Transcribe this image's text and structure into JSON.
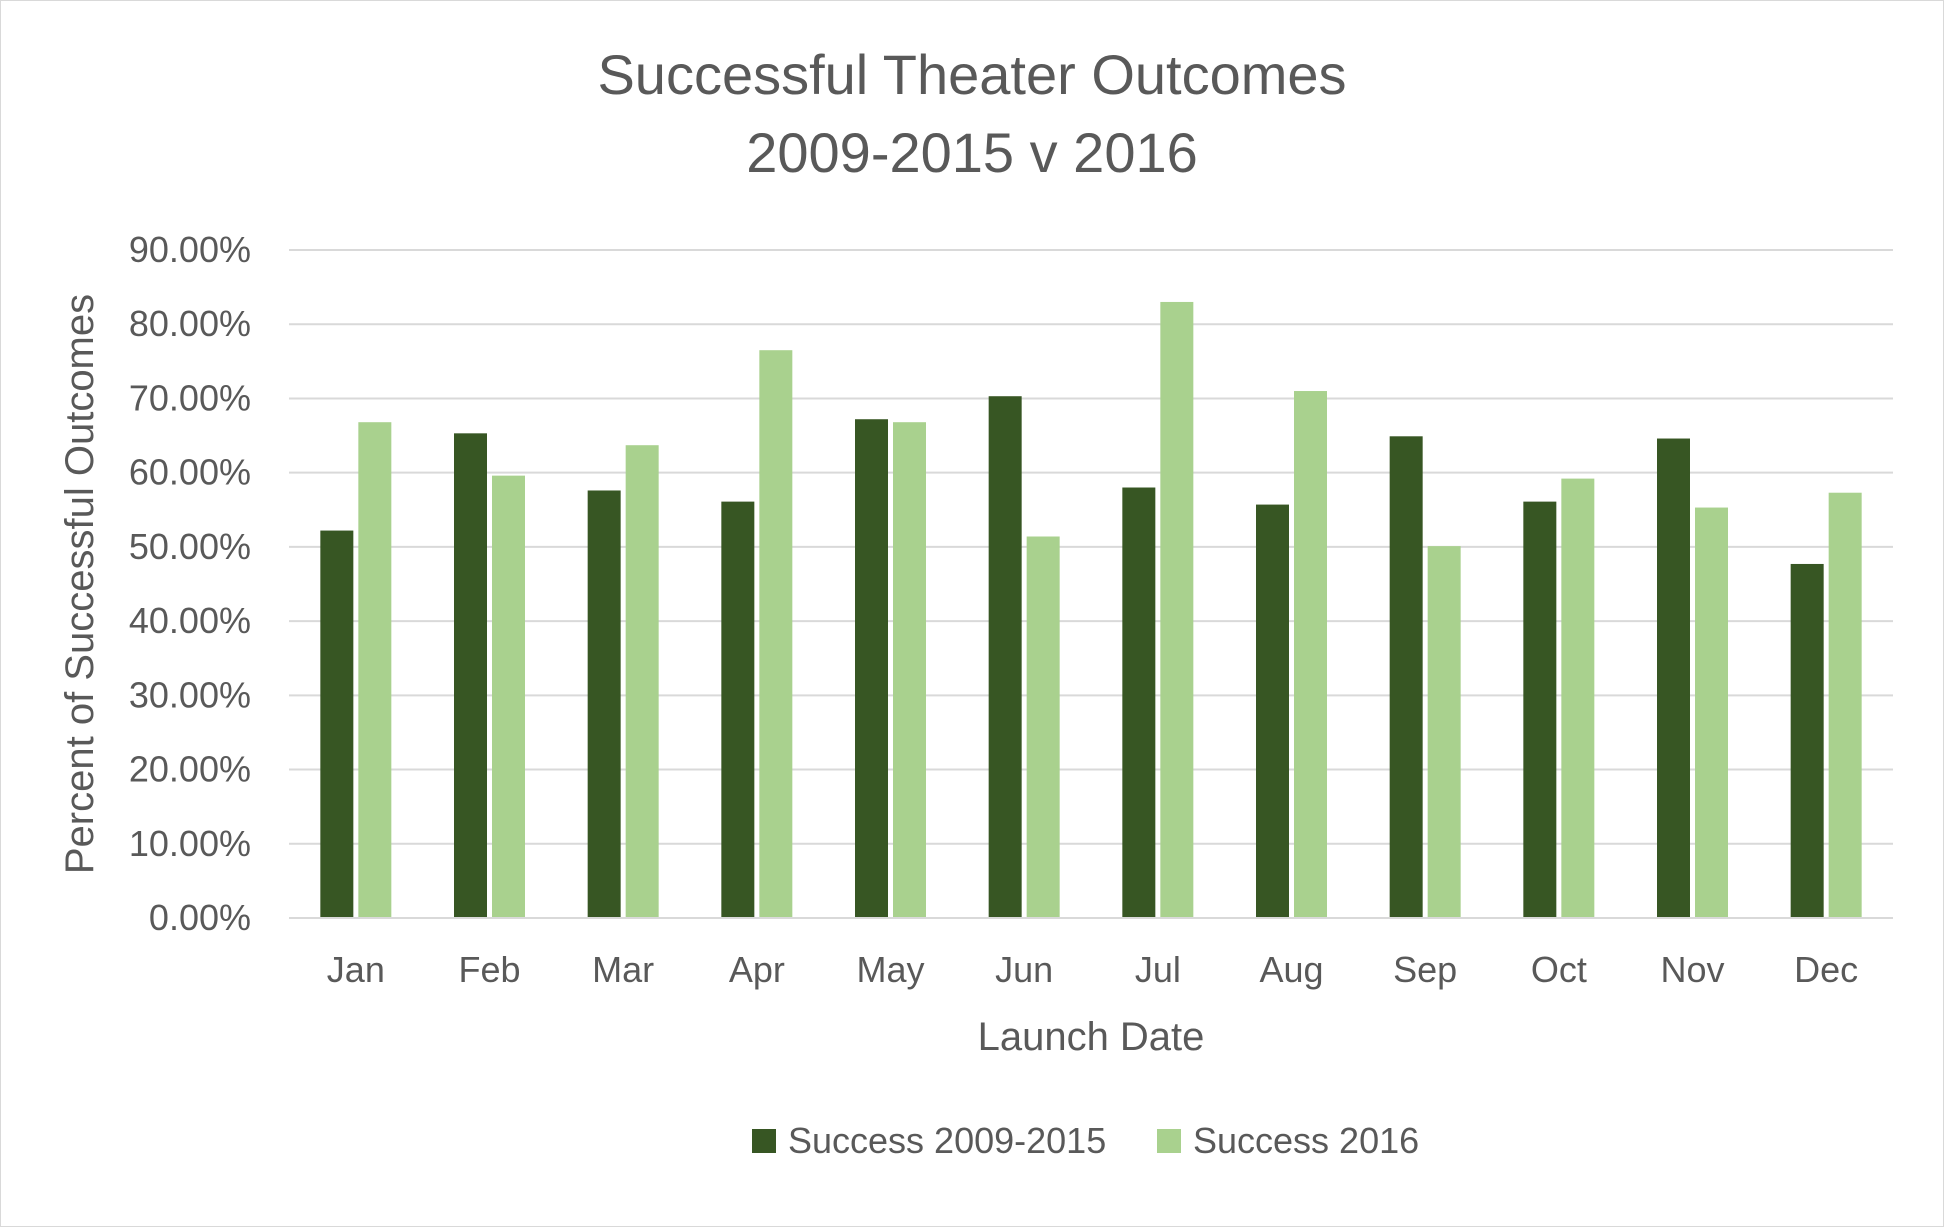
{
  "chart_data": {
    "type": "bar",
    "title_lines": [
      "Successful Theater Outcomes",
      "2009-2015 v 2016"
    ],
    "xlabel": "Launch Date",
    "ylabel": "Percent of Successful Outcomes",
    "categories": [
      "Jan",
      "Feb",
      "Mar",
      "Apr",
      "May",
      "Jun",
      "Jul",
      "Aug",
      "Sep",
      "Oct",
      "Nov",
      "Dec"
    ],
    "ylim": [
      0,
      90
    ],
    "yticks": [
      0,
      10,
      20,
      30,
      40,
      50,
      60,
      70,
      80,
      90
    ],
    "ytick_labels": [
      "0.00%",
      "10.00%",
      "20.00%",
      "30.00%",
      "40.00%",
      "50.00%",
      "60.00%",
      "70.00%",
      "80.00%",
      "90.00%"
    ],
    "grid": true,
    "legend_position": "bottom",
    "series": [
      {
        "name": "Success 2009-2015",
        "color": "#375623",
        "values": [
          52.2,
          65.3,
          57.6,
          56.1,
          67.2,
          70.3,
          58.0,
          55.7,
          64.9,
          56.1,
          64.6,
          47.7
        ]
      },
      {
        "name": "Success 2016",
        "color": "#a9d18e",
        "values": [
          66.8,
          59.6,
          63.7,
          76.5,
          66.8,
          51.4,
          83.0,
          71.0,
          50.1,
          59.2,
          55.3,
          57.3
        ]
      }
    ]
  }
}
